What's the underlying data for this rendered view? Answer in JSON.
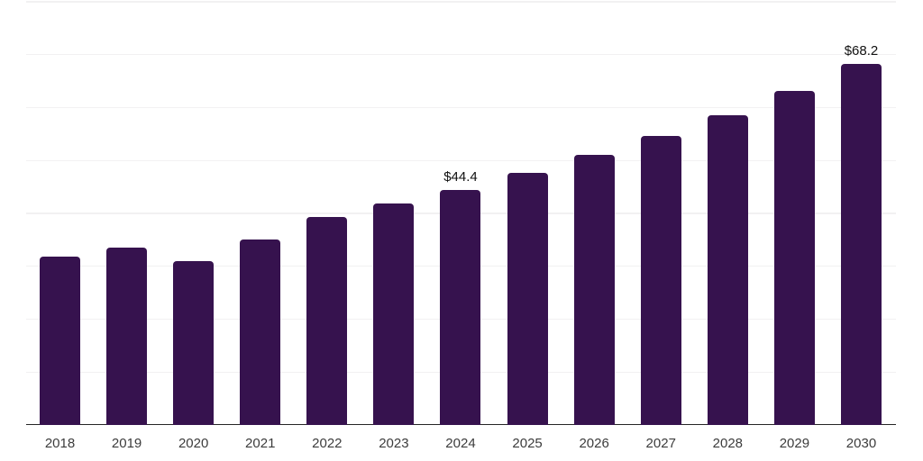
{
  "chart_data": {
    "type": "bar",
    "title": "",
    "xlabel": "",
    "ylabel": "",
    "categories": [
      "2018",
      "2019",
      "2020",
      "2021",
      "2022",
      "2023",
      "2024",
      "2025",
      "2026",
      "2027",
      "2028",
      "2029",
      "2030"
    ],
    "values": [
      31.8,
      33.6,
      31.0,
      35.1,
      39.3,
      41.8,
      44.4,
      47.6,
      51.1,
      54.7,
      58.6,
      63.2,
      68.2
    ],
    "bar_labels": [
      null,
      null,
      null,
      null,
      null,
      null,
      "$44.4",
      null,
      null,
      null,
      null,
      null,
      "$68.2"
    ],
    "ylim": [
      0,
      80
    ],
    "gridline_step": 10,
    "grid": true,
    "legend_position": "none",
    "colors": {
      "bar": "#36124E",
      "axis": "#262626",
      "gridline": "#F2F1F2",
      "tick_label": "#3C3C3C",
      "value_label": "#111111",
      "background": "#FFFFFF"
    }
  }
}
